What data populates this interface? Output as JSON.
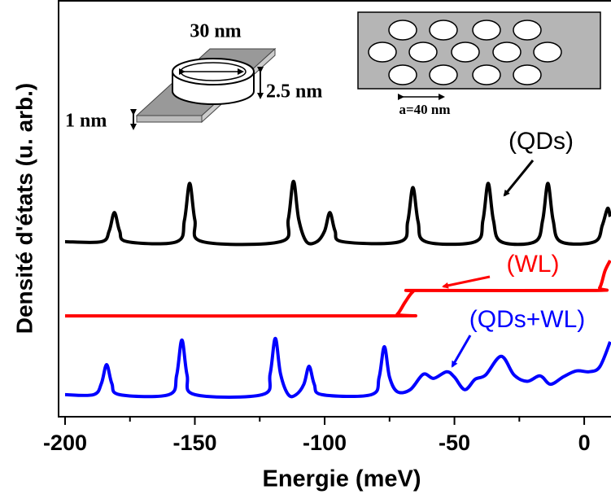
{
  "chart_data": {
    "type": "line",
    "xlabel": "Energie (meV)",
    "ylabel": "Densité d'états (u. arb.)",
    "xlim": [
      -202.5,
      10
    ],
    "xticks": [
      -200,
      -150,
      -100,
      -50,
      0
    ],
    "xminorticks": [
      -175,
      -125,
      -75,
      -25
    ],
    "ylim": [
      0,
      100
    ],
    "annotations": [
      "30 nm",
      "2.5 nm",
      "1 nm",
      "a=40 nm"
    ],
    "series": [
      {
        "name": "(QDs)",
        "color": "#000000",
        "x": [
          -200,
          -186,
          -183,
          -181,
          -179,
          -176,
          -157,
          -154,
          -152,
          -150,
          -147,
          -117,
          -114,
          -112,
          -110,
          -107,
          -103,
          -100,
          -98,
          -96,
          -93,
          -71,
          -68,
          -66,
          -64,
          -61,
          -42,
          -39,
          -37,
          -35,
          -32,
          -19,
          -16,
          -14,
          -12,
          -9,
          4,
          7,
          9,
          10
        ],
        "values": [
          42,
          42,
          44.6,
          49,
          44.6,
          42,
          42,
          47.2,
          56,
          47.2,
          42,
          42,
          47.4,
          56.5,
          47.4,
          42,
          42,
          44.6,
          49,
          44.6,
          42,
          42,
          46.8,
          55,
          46.8,
          42,
          42,
          47.2,
          56,
          47.2,
          42,
          42,
          47.2,
          56,
          47.2,
          42,
          42,
          46,
          50,
          48
        ]
      },
      {
        "name": "(WL)",
        "color": "#ff0000",
        "x": [
          -200,
          -75,
          -72,
          -69,
          -66,
          -63,
          3,
          6,
          8,
          10
        ],
        "values": [
          24.2,
          24.2,
          24.6,
          27.5,
          30,
          30.3,
          30.3,
          31,
          35,
          37.5
        ]
      },
      {
        "name": "(QDs+WL)",
        "color": "#0000ff",
        "x": [
          -200,
          -189,
          -186,
          -184,
          -182,
          -179,
          -160,
          -157,
          -155,
          -153,
          -150,
          -124,
          -121,
          -119,
          -117,
          -114,
          -111,
          -108,
          -106,
          -104,
          -101,
          -82,
          -79,
          -77,
          -75,
          -72,
          -67,
          -62,
          -58,
          -53,
          -50,
          -46,
          -42,
          -38,
          -32,
          -27,
          -22,
          -17,
          -13,
          -8,
          -3,
          2,
          6,
          10
        ],
        "values": [
          5.3,
          5.3,
          8,
          12.5,
          8,
          5.3,
          5.3,
          10,
          18.4,
          10,
          5.3,
          5.3,
          10.3,
          18.8,
          10.3,
          5.3,
          5.3,
          7.8,
          12.1,
          7.8,
          5.3,
          5.3,
          9.5,
          16.8,
          9.5,
          6,
          6.5,
          10.2,
          9.2,
          10.8,
          9.5,
          6.5,
          9,
          10,
          14.5,
          10,
          8.5,
          9.8,
          7.8,
          9.6,
          11,
          10.8,
          12,
          18
        ]
      }
    ]
  }
}
